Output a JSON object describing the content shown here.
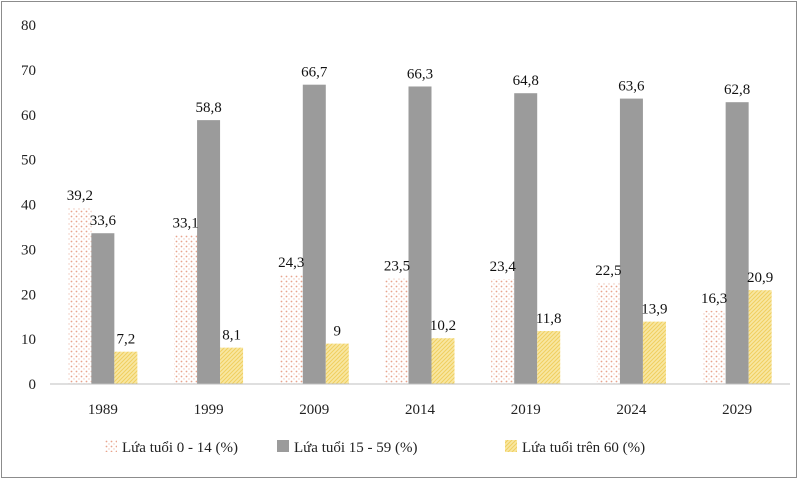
{
  "chart_data": {
    "type": "bar",
    "title": "",
    "xlabel": "",
    "ylabel": "",
    "ylim": [
      0,
      80
    ],
    "yticks": [
      0,
      10,
      20,
      30,
      40,
      50,
      60,
      70,
      80
    ],
    "grid": false,
    "legend_position": "bottom",
    "categories": [
      "1989",
      "1999",
      "2009",
      "2014",
      "2019",
      "2024",
      "2029"
    ],
    "series": [
      {
        "name": "Lứa tuổi 0 - 14 (%)",
        "values": [
          39.2,
          33.1,
          24.3,
          23.5,
          23.4,
          22.5,
          16.3
        ],
        "labels": [
          "39,2",
          "33,1",
          "24,3",
          "23,5",
          "23,4",
          "22,5",
          "16,3"
        ],
        "color": "#f2b8a2"
      },
      {
        "name": "Lứa tuổi 15 - 59 (%)",
        "values": [
          33.6,
          58.8,
          66.7,
          66.3,
          64.8,
          63.6,
          62.8
        ],
        "labels": [
          "33,6",
          "58,8",
          "66,7",
          "66,3",
          "64,8",
          "63,6",
          "62,8"
        ],
        "color": "#9b9b9b"
      },
      {
        "name": "Lứa tuổi trên 60 (%)",
        "values": [
          7.2,
          8.1,
          9,
          10.2,
          11.8,
          13.9,
          20.9
        ],
        "labels": [
          "7,2",
          "8,1",
          "9",
          "10,2",
          "11,8",
          "13,9",
          "20,9"
        ],
        "color": "#f7e08a"
      }
    ]
  }
}
